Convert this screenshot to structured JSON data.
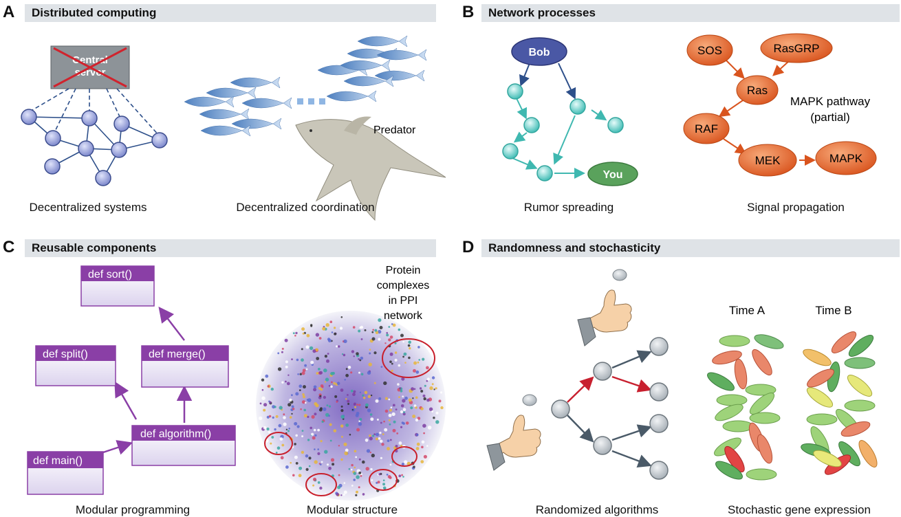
{
  "panels": {
    "A": {
      "letter": "A",
      "title": "Distributed computing",
      "server_label": "Central server",
      "caption_left": "Decentralized systems",
      "caption_right": "Decentralized coordination",
      "predator_label": "Predator"
    },
    "B": {
      "letter": "B",
      "title": "Network processes",
      "source_node": "Bob",
      "target_node": "You",
      "pathway_nodes": [
        "SOS",
        "RasGRP",
        "Ras",
        "RAF",
        "MEK",
        "MAPK"
      ],
      "pathway_label_1": "MAPK pathway",
      "pathway_label_2": "(partial)",
      "caption_left": "Rumor spreading",
      "caption_right": "Signal propagation"
    },
    "C": {
      "letter": "C",
      "title": "Reusable components",
      "functions": [
        "def sort()",
        "def split()",
        "def merge()",
        "def algorithm()",
        "def main()"
      ],
      "ppi_label_lines": [
        "Protein",
        "complexes",
        "in PPI",
        "network"
      ],
      "caption_left": "Modular programming",
      "caption_right": "Modular structure"
    },
    "D": {
      "letter": "D",
      "title": "Randomness and stochasticity",
      "time_a": "Time A",
      "time_b": "Time B",
      "caption_left": "Randomized algorithms",
      "caption_right": "Stochastic gene expression"
    }
  },
  "colors": {
    "header_bg": "#dfe3e7",
    "network_node": "#8f99d6",
    "network_edge": "#2d4f8a",
    "teal": "#4fc6c0",
    "bob": "#4a58a5",
    "you": "#5aa25c",
    "pathway": "#e2682e",
    "code_purple": "#8a3fa6",
    "random_red": "#c8202f",
    "random_gray": "#4a5a68"
  }
}
